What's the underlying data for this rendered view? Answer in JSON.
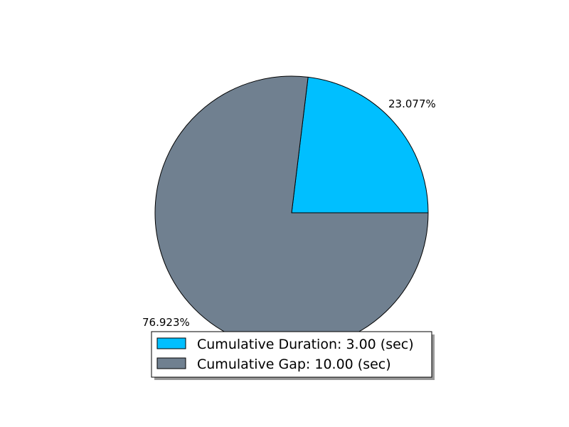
{
  "chart_data": {
    "type": "pie",
    "title": "",
    "start_angle_deg": 0,
    "direction": "counterclockwise",
    "legend_placement": "bottom-center",
    "slices": [
      {
        "label": "Cumulative Duration: 3.00 (sec)",
        "value": 3.0,
        "percent_label": "23.077%",
        "color": "#00bfff"
      },
      {
        "label": "Cumulative Gap: 10.00 (sec)",
        "value": 10.0,
        "percent_label": "76.923%",
        "color": "#708090"
      }
    ]
  }
}
